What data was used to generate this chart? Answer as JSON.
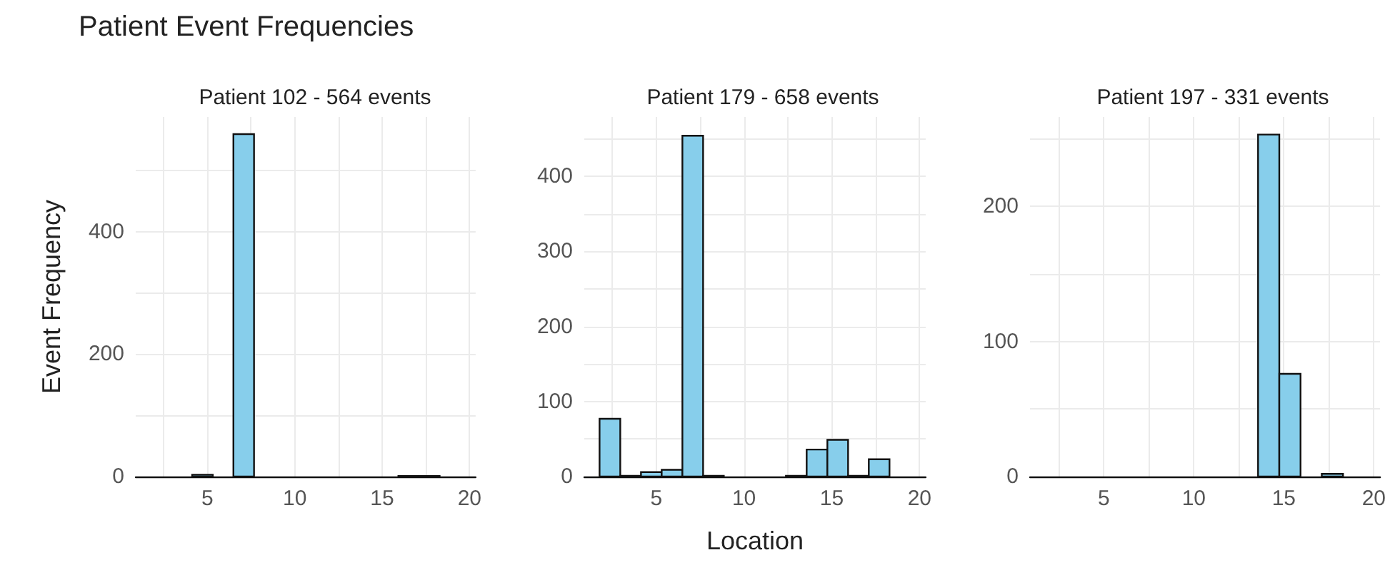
{
  "chart_data": [
    {
      "type": "histogram",
      "title": "Patient 102 - 564 events",
      "ylabel": "Event Frequency",
      "annotations": [
        "Patient Event Frequencies"
      ],
      "color": "#87ceeb",
      "bins": [
        1.77,
        2.95,
        4.13,
        5.31,
        6.49,
        7.67,
        8.85,
        10.03,
        11.21,
        12.39,
        13.57,
        14.75,
        15.93,
        17.11,
        18.29,
        19.47
      ],
      "values": [
        0,
        0,
        3,
        0,
        559,
        0,
        0,
        0,
        0,
        0,
        0,
        0,
        1,
        1,
        0
      ],
      "xlim": [
        0.9,
        20.35
      ],
      "xticks": [
        {
          "value": 2.5,
          "label": null
        },
        5,
        {
          "value": 7.5,
          "label": null
        },
        10,
        {
          "value": 12.5,
          "label": null
        },
        15,
        {
          "value": 17.5,
          "label": null
        },
        20
      ],
      "ylim": [
        0,
        587
      ],
      "yticks": [
        0,
        {
          "value": 100,
          "label": null
        },
        200,
        {
          "value": 300,
          "label": null
        },
        400,
        {
          "value": 500,
          "label": null
        }
      ],
      "grid": true
    },
    {
      "type": "histogram",
      "title": "Patient 179 - 658 events",
      "xlabel": "Location",
      "color": "#87ceeb",
      "bins": [
        1.77,
        2.95,
        4.13,
        5.31,
        6.49,
        7.67,
        8.85,
        10.03,
        11.21,
        12.39,
        13.57,
        14.75,
        15.93,
        17.11,
        18.29,
        19.47
      ],
      "values": [
        77,
        1,
        6,
        9,
        454,
        1,
        0,
        0,
        0,
        1,
        36,
        49,
        1,
        23,
        0
      ],
      "xlim": [
        0.9,
        20.35
      ],
      "xticks": [
        {
          "value": 2.5,
          "label": null
        },
        5,
        {
          "value": 7.5,
          "label": null
        },
        10,
        {
          "value": 12.5,
          "label": null
        },
        15,
        {
          "value": 17.5,
          "label": null
        },
        20
      ],
      "ylim": [
        0,
        479
      ],
      "yticks": [
        0,
        {
          "value": 50,
          "label": null
        },
        100,
        {
          "value": 150,
          "label": null
        },
        200,
        {
          "value": 250,
          "label": null
        },
        300,
        {
          "value": 350,
          "label": null
        },
        400,
        {
          "value": 450,
          "label": null
        }
      ],
      "grid": true
    },
    {
      "type": "histogram",
      "title": "Patient 197 - 331 events",
      "color": "#87ceeb",
      "bins": [
        1.77,
        2.95,
        4.13,
        5.31,
        6.49,
        7.67,
        8.85,
        10.03,
        11.21,
        12.39,
        13.57,
        14.75,
        15.93,
        17.11,
        18.29,
        19.47
      ],
      "values": [
        0,
        0,
        0,
        0,
        0,
        0,
        0,
        0,
        0,
        0,
        253,
        76,
        0,
        2,
        0
      ],
      "xlim": [
        0.9,
        20.35
      ],
      "xticks": [
        {
          "value": 2.5,
          "label": null
        },
        5,
        {
          "value": 7.5,
          "label": null
        },
        10,
        {
          "value": 12.5,
          "label": null
        },
        15,
        {
          "value": 17.5,
          "label": null
        },
        20
      ],
      "ylim": [
        0,
        266
      ],
      "yticks": [
        0,
        {
          "value": 50,
          "label": null
        },
        100,
        {
          "value": 150,
          "label": null
        },
        200,
        {
          "value": 250,
          "label": null
        }
      ],
      "grid": true
    }
  ]
}
